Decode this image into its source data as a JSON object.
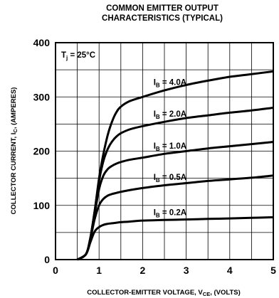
{
  "chart_data": {
    "type": "line",
    "title": [
      "COMMON EMITTER OUTPUT",
      "CHARACTERISTICS (TYPICAL)"
    ],
    "xlabel": {
      "main": "COLLECTOR-EMITTER VOLTAGE, V",
      "sub": "CE",
      "tail": ", (VOLTS)"
    },
    "ylabel": {
      "main": "COLLECTOR CURRENT, I",
      "sub": "C",
      "tail": ", (AMPERES)"
    },
    "xlim": [
      0,
      5
    ],
    "ylim": [
      0,
      400
    ],
    "x_ticks": [
      0,
      1,
      2,
      3,
      4,
      5
    ],
    "y_ticks": [
      0,
      100,
      200,
      300,
      400
    ],
    "x_tick_labels": [
      "0",
      "1",
      "2",
      "3",
      "4",
      "5"
    ],
    "y_tick_labels": [
      "0",
      "100",
      "200",
      "300",
      "400"
    ],
    "grid": true,
    "annotation": {
      "main": "T",
      "sub": "j",
      "tail": " = 25°C"
    },
    "series": [
      {
        "name": "I_B = 4.0A",
        "label_main": "I",
        "label_sub": "B",
        "label_tail": " = 4.0A",
        "x": [
          0.5,
          0.7,
          0.8,
          0.9,
          1.0,
          1.1,
          1.2,
          1.3,
          1.4,
          1.5,
          1.7,
          2.0,
          2.5,
          3.0,
          3.5,
          4.0,
          4.5,
          5.0
        ],
        "y": [
          0,
          10,
          40,
          90,
          150,
          195,
          230,
          255,
          272,
          282,
          292,
          300,
          312,
          322,
          330,
          337,
          342,
          347
        ]
      },
      {
        "name": "I_B = 2.0A",
        "label_main": "I",
        "label_sub": "B",
        "label_tail": " = 2.0A",
        "x": [
          0.5,
          0.7,
          0.8,
          0.9,
          1.0,
          1.1,
          1.2,
          1.3,
          1.4,
          1.5,
          1.7,
          2.0,
          2.5,
          3.0,
          3.5,
          4.0,
          4.5,
          5.0
        ],
        "y": [
          0,
          10,
          40,
          90,
          145,
          182,
          204,
          218,
          227,
          233,
          240,
          246,
          254,
          261,
          266,
          271,
          275,
          280
        ]
      },
      {
        "name": "I_B = 1.0A",
        "label_main": "I",
        "label_sub": "B",
        "label_tail": " = 1.0A",
        "x": [
          0.5,
          0.7,
          0.8,
          0.9,
          1.0,
          1.1,
          1.2,
          1.3,
          1.4,
          1.5,
          1.7,
          2.0,
          2.5,
          3.0,
          3.5,
          4.0,
          4.5,
          5.0
        ],
        "y": [
          0,
          10,
          40,
          85,
          130,
          155,
          167,
          173,
          177,
          180,
          184,
          188,
          195,
          200,
          205,
          209,
          213,
          217
        ]
      },
      {
        "name": "I_B = 0.5A",
        "label_main": "I",
        "label_sub": "B",
        "label_tail": " = 0.5A",
        "x": [
          0.5,
          0.7,
          0.8,
          0.9,
          1.0,
          1.1,
          1.2,
          1.3,
          1.4,
          1.5,
          1.7,
          2.0,
          2.5,
          3.0,
          3.5,
          4.0,
          4.5,
          5.0
        ],
        "y": [
          0,
          10,
          38,
          75,
          100,
          112,
          118,
          121,
          123,
          125,
          128,
          132,
          137,
          141,
          145,
          148,
          151,
          155
        ]
      },
      {
        "name": "I_B = 0.2A",
        "label_main": "I",
        "label_sub": "B",
        "label_tail": " = 0.2A",
        "x": [
          0.5,
          0.7,
          0.8,
          0.9,
          1.0,
          1.1,
          1.2,
          1.3,
          1.4,
          1.5,
          1.7,
          2.0,
          2.5,
          3.0,
          3.5,
          4.0,
          4.5,
          5.0
        ],
        "y": [
          0,
          10,
          32,
          52,
          60,
          64,
          66,
          67,
          68,
          69,
          70,
          72,
          73,
          74,
          75,
          76,
          77,
          78
        ]
      }
    ]
  }
}
